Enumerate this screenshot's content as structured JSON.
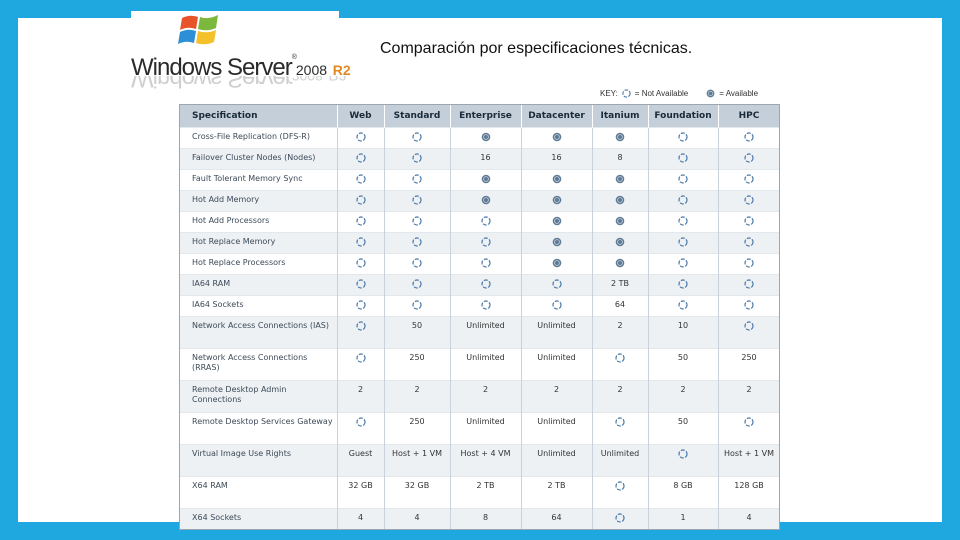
{
  "logo": {
    "wordmark": "Windows Server",
    "version": "2008",
    "release": "R2",
    "trademark": "®"
  },
  "title": "Comparación por especificaciones técnicas.",
  "key": {
    "label": "KEY:",
    "not_available_label": "= Not Available",
    "available_label": "= Available"
  },
  "colors": {
    "frame": "#1fa8e0",
    "header_bg": "#c4cfd9",
    "alt_row_bg": "#eef1f4",
    "available_icon": "#5f7a94",
    "not_available_icon": "#4a78a8"
  },
  "icons": {
    "not_available": "dashed-circle-icon",
    "available": "filled-circle-icon"
  },
  "table": {
    "columns": [
      "Specification",
      "Web",
      "Standard",
      "Enterprise",
      "Datacenter",
      "Itanium",
      "Foundation",
      "HPC"
    ],
    "rows": [
      {
        "spec": "Cross-File Replication (DFS-R)",
        "cells": [
          "x",
          "x",
          "o",
          "o",
          "o",
          "x",
          "x"
        ]
      },
      {
        "spec": "Failover Cluster Nodes (Nodes)",
        "cells": [
          "x",
          "x",
          "16",
          "16",
          "8",
          "x",
          "x"
        ]
      },
      {
        "spec": "Fault Tolerant Memory Sync",
        "cells": [
          "x",
          "x",
          "o",
          "o",
          "o",
          "x",
          "x"
        ]
      },
      {
        "spec": "Hot Add Memory",
        "cells": [
          "x",
          "x",
          "o",
          "o",
          "o",
          "x",
          "x"
        ]
      },
      {
        "spec": "Hot Add Processors",
        "cells": [
          "x",
          "x",
          "x",
          "o",
          "o",
          "x",
          "x"
        ]
      },
      {
        "spec": "Hot Replace Memory",
        "cells": [
          "x",
          "x",
          "x",
          "o",
          "o",
          "x",
          "x"
        ]
      },
      {
        "spec": "Hot Replace Processors",
        "cells": [
          "x",
          "x",
          "x",
          "o",
          "o",
          "x",
          "x"
        ]
      },
      {
        "spec": "IA64 RAM",
        "cells": [
          "x",
          "x",
          "x",
          "x",
          "2 TB",
          "x",
          "x"
        ]
      },
      {
        "spec": "IA64 Sockets",
        "cells": [
          "x",
          "x",
          "x",
          "x",
          "64",
          "x",
          "x"
        ]
      },
      {
        "spec": "Network Access Connections (IAS)",
        "cells": [
          "x",
          "50",
          "Unlimited",
          "Unlimited",
          "2",
          "10",
          "x"
        ]
      },
      {
        "spec": "Network Access Connections (RRAS)",
        "cells": [
          "x",
          "250",
          "Unlimited",
          "Unlimited",
          "x",
          "50",
          "250"
        ]
      },
      {
        "spec": "Remote Desktop Admin Connections",
        "cells": [
          "2",
          "2",
          "2",
          "2",
          "2",
          "2",
          "2"
        ]
      },
      {
        "spec": "Remote Desktop Services Gateway",
        "cells": [
          "x",
          "250",
          "Unlimited",
          "Unlimited",
          "x",
          "50",
          "x"
        ]
      },
      {
        "spec": "Virtual Image Use Rights",
        "cells": [
          "Guest",
          "Host + 1 VM",
          "Host + 4 VM",
          "Unlimited",
          "Unlimited",
          "x",
          "Host + 1 VM"
        ]
      },
      {
        "spec": "X64 RAM",
        "cells": [
          "32 GB",
          "32 GB",
          "2 TB",
          "2 TB",
          "x",
          "8 GB",
          "128 GB"
        ]
      },
      {
        "spec": "X64 Sockets",
        "cells": [
          "4",
          "4",
          "8",
          "64",
          "x",
          "1",
          "4"
        ]
      }
    ]
  }
}
